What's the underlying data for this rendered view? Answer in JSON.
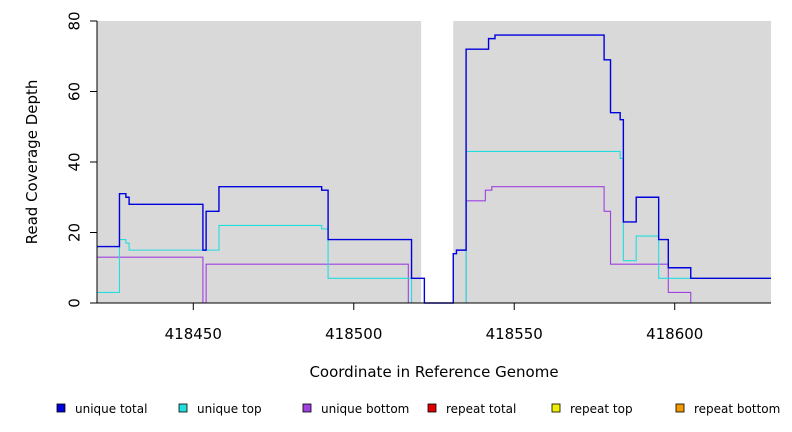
{
  "chart_data": {
    "type": "line",
    "step": true,
    "xlabel": "Coordinate in Reference Genome",
    "ylabel": "Read Coverage Depth",
    "xlim": [
      418420,
      418630
    ],
    "ylim": [
      0,
      80
    ],
    "x_ticks": [
      418450,
      418500,
      418550,
      418600
    ],
    "y_ticks": [
      0,
      20,
      40,
      60,
      80
    ],
    "background": "#d9d9d9",
    "grid": false,
    "gap": [
      418521,
      418531
    ],
    "legend_position": "bottom",
    "series": [
      {
        "name": "unique total",
        "color": "#0000dd",
        "points": [
          [
            418420,
            16
          ],
          [
            418427,
            16
          ],
          [
            418427,
            31
          ],
          [
            418429,
            31
          ],
          [
            418429,
            30
          ],
          [
            418430,
            30
          ],
          [
            418430,
            28
          ],
          [
            418453,
            28
          ],
          [
            418453,
            15
          ],
          [
            418454,
            15
          ],
          [
            418454,
            26
          ],
          [
            418458,
            26
          ],
          [
            418458,
            33
          ],
          [
            418490,
            33
          ],
          [
            418490,
            32
          ],
          [
            418492,
            32
          ],
          [
            418492,
            18
          ],
          [
            418518,
            18
          ],
          [
            418518,
            7
          ],
          [
            418522,
            7
          ],
          [
            418522,
            0
          ],
          [
            418531,
            0
          ],
          [
            418531,
            14
          ],
          [
            418532,
            14
          ],
          [
            418532,
            15
          ],
          [
            418535,
            15
          ],
          [
            418535,
            72
          ],
          [
            418542,
            72
          ],
          [
            418542,
            75
          ],
          [
            418544,
            75
          ],
          [
            418544,
            76
          ],
          [
            418578,
            76
          ],
          [
            418578,
            69
          ],
          [
            418580,
            69
          ],
          [
            418580,
            54
          ],
          [
            418583,
            54
          ],
          [
            418583,
            52
          ],
          [
            418584,
            52
          ],
          [
            418584,
            23
          ],
          [
            418588,
            23
          ],
          [
            418588,
            30
          ],
          [
            418595,
            30
          ],
          [
            418595,
            18
          ],
          [
            418598,
            18
          ],
          [
            418598,
            10
          ],
          [
            418605,
            10
          ],
          [
            418605,
            7
          ],
          [
            418630,
            7
          ]
        ]
      },
      {
        "name": "unique top",
        "color": "#22dddd",
        "points": [
          [
            418420,
            3
          ],
          [
            418427,
            3
          ],
          [
            418427,
            18
          ],
          [
            418429,
            18
          ],
          [
            418429,
            17
          ],
          [
            418430,
            17
          ],
          [
            418430,
            15
          ],
          [
            418458,
            15
          ],
          [
            418458,
            22
          ],
          [
            418490,
            22
          ],
          [
            418490,
            21
          ],
          [
            418492,
            21
          ],
          [
            418492,
            7
          ],
          [
            418518,
            7
          ],
          [
            418518,
            0
          ],
          [
            418535,
            0
          ],
          [
            418535,
            43
          ],
          [
            418583,
            43
          ],
          [
            418583,
            41
          ],
          [
            418584,
            41
          ],
          [
            418584,
            12
          ],
          [
            418588,
            12
          ],
          [
            418588,
            19
          ],
          [
            418595,
            19
          ],
          [
            418595,
            7
          ],
          [
            418630,
            7
          ]
        ]
      },
      {
        "name": "unique bottom",
        "color": "#a040e0",
        "points": [
          [
            418420,
            13
          ],
          [
            418453,
            13
          ],
          [
            418453,
            0
          ],
          [
            418454,
            0
          ],
          [
            418454,
            11
          ],
          [
            418517,
            11
          ],
          [
            418517,
            0
          ],
          [
            418535,
            0
          ],
          [
            418535,
            29
          ],
          [
            418541,
            29
          ],
          [
            418541,
            32
          ],
          [
            418543,
            32
          ],
          [
            418543,
            33
          ],
          [
            418578,
            33
          ],
          [
            418578,
            26
          ],
          [
            418580,
            26
          ],
          [
            418580,
            11
          ],
          [
            418598,
            11
          ],
          [
            418598,
            3
          ],
          [
            418605,
            3
          ],
          [
            418605,
            0
          ],
          [
            418630,
            0
          ]
        ]
      },
      {
        "name": "repeat total",
        "color": "#dd0000",
        "points": [
          [
            418420,
            0
          ],
          [
            418630,
            0
          ]
        ]
      },
      {
        "name": "repeat top",
        "color": "#eeee00",
        "points": [
          [
            418420,
            0
          ],
          [
            418630,
            0
          ]
        ]
      },
      {
        "name": "repeat bottom",
        "color": "#ee9a00",
        "points": [
          [
            418420,
            0
          ],
          [
            418630,
            0
          ]
        ]
      }
    ]
  }
}
